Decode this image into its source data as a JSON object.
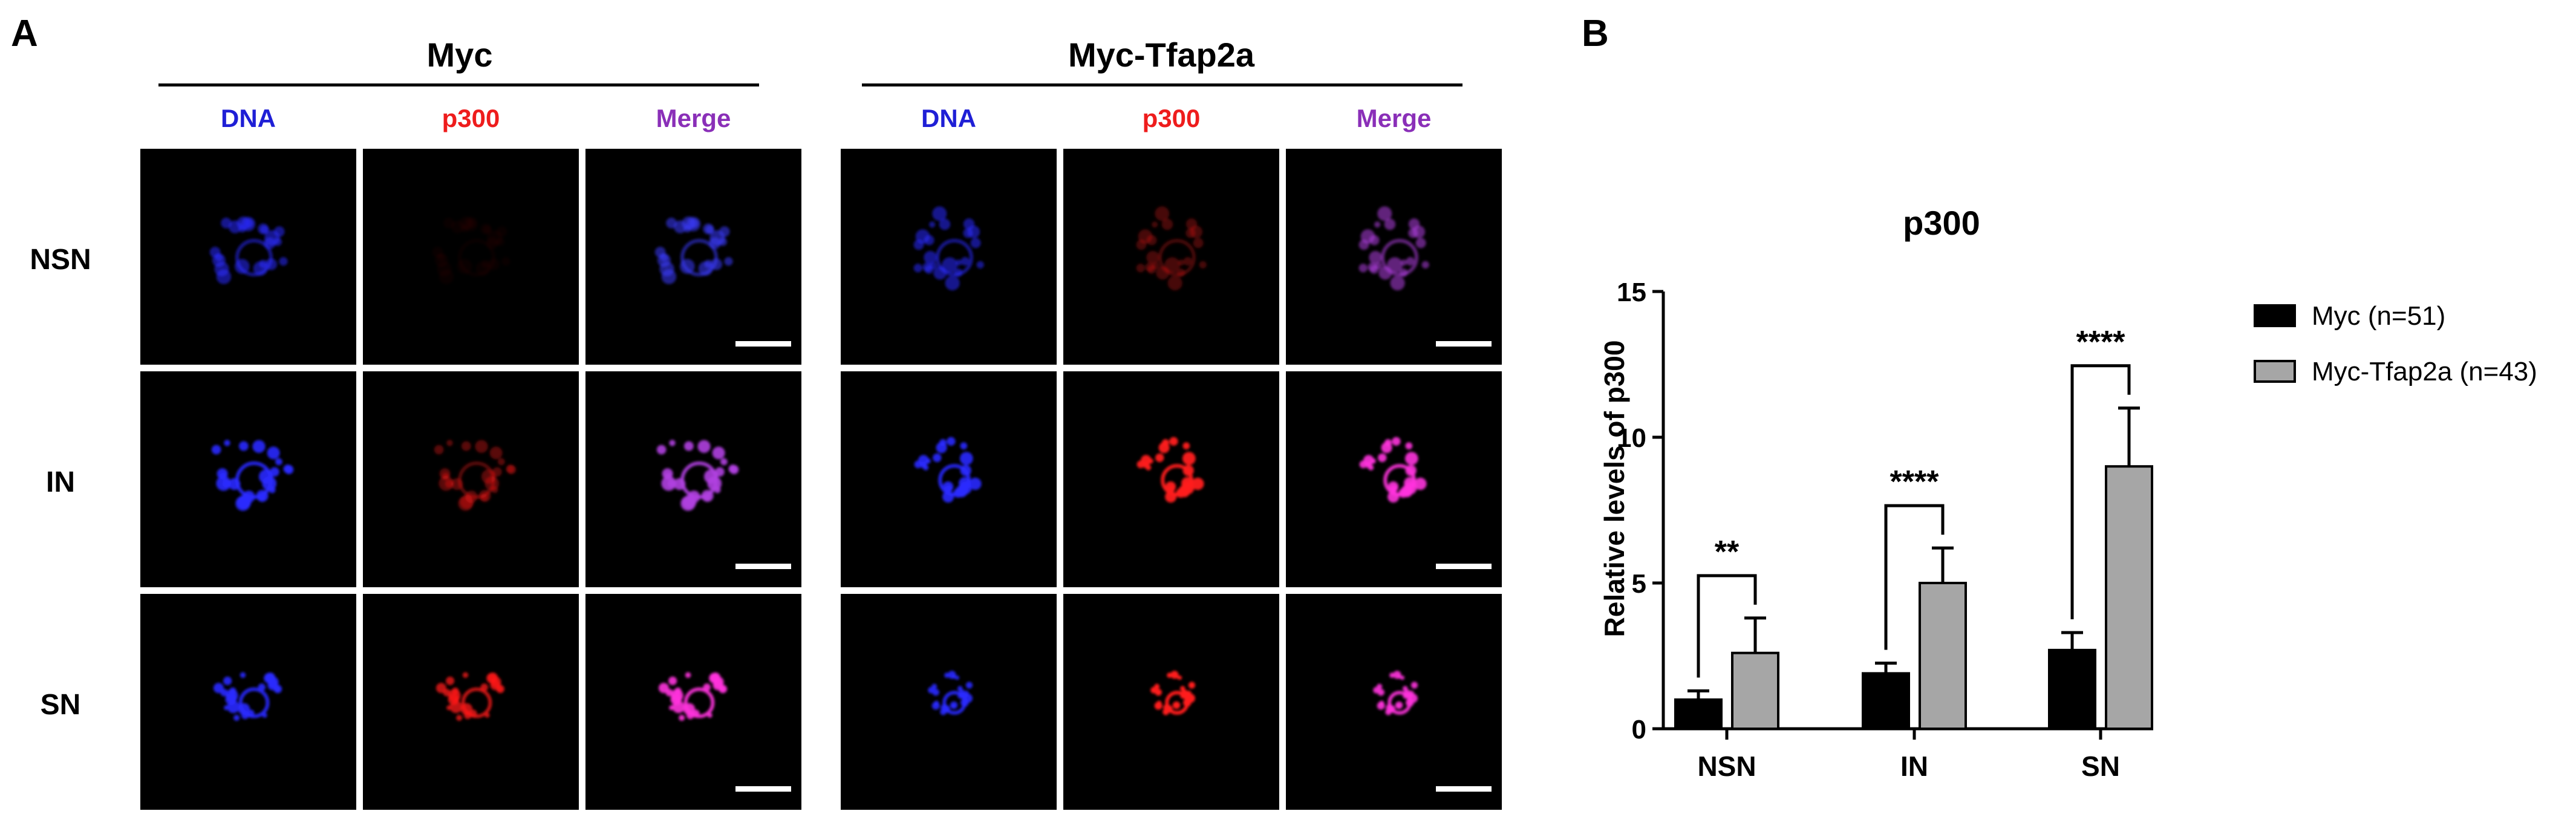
{
  "panel_a": {
    "letter": "A",
    "groups": [
      {
        "title": "Myc",
        "columns": [
          "DNA",
          "p300",
          "Merge"
        ]
      },
      {
        "title": "Myc-Tfap2a",
        "columns": [
          "DNA",
          "p300",
          "Merge"
        ]
      }
    ],
    "rows": [
      "NSN",
      "IN",
      "SN"
    ],
    "channel_colors": {
      "DNA": "#1f1fd6",
      "p300": "#ee1c1c",
      "Merge": "#8a2fb8"
    }
  },
  "panel_b": {
    "letter": "B"
  },
  "chart_data": {
    "type": "bar",
    "title": "p300",
    "ylabel": "Relative levels of p300",
    "xlabel": "",
    "categories": [
      "NSN",
      "IN",
      "SN"
    ],
    "ylim": [
      0,
      15
    ],
    "yticks": [
      0,
      5,
      10,
      15
    ],
    "grid": false,
    "legend": "right",
    "series": [
      {
        "name": "Myc (n=51)",
        "values": [
          1.0,
          1.9,
          2.7
        ],
        "errors": [
          0.3,
          0.35,
          0.6
        ],
        "color": "#000000"
      },
      {
        "name": "Myc-Tfap2a (n=43)",
        "values": [
          2.6,
          5.0,
          9.0
        ],
        "errors": [
          1.2,
          1.2,
          2.0
        ],
        "color": "#a6a6a6"
      }
    ],
    "significance": [
      "**",
      "****",
      "****"
    ]
  }
}
